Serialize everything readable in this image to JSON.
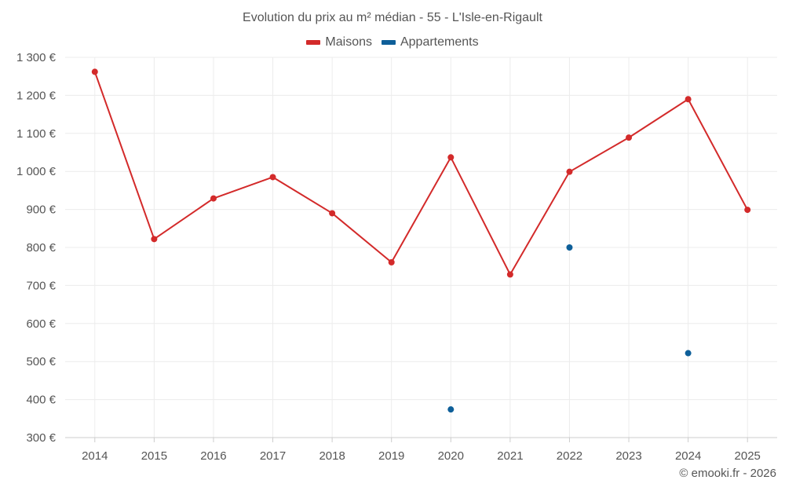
{
  "colors": {
    "maisons": "#d32a2a",
    "appartements": "#0e5f99",
    "grid": "#ececec",
    "axis": "#cccccc"
  },
  "credit": "© emooki.fr - 2026",
  "chart_data": {
    "type": "line",
    "title": "Evolution du prix au m² médian - 55 - L'Isle-en-Rigault",
    "xlabel": "",
    "ylabel": "",
    "ylim": [
      300,
      1300
    ],
    "yticks": [
      300,
      400,
      500,
      600,
      700,
      800,
      900,
      1000,
      1100,
      1200,
      1300
    ],
    "ytick_labels": [
      "300 €",
      "400 €",
      "500 €",
      "600 €",
      "700 €",
      "800 €",
      "900 €",
      "1 000 €",
      "1 100 €",
      "1 200 €",
      "1 300 €"
    ],
    "categories": [
      "2014",
      "2015",
      "2016",
      "2017",
      "2018",
      "2019",
      "2020",
      "2021",
      "2022",
      "2023",
      "2024",
      "2025"
    ],
    "legend_position": "top-center",
    "grid": true,
    "series": [
      {
        "name": "Maisons",
        "color_key": "maisons",
        "style": "line",
        "values": [
          1262,
          822,
          929,
          985,
          890,
          761,
          1037,
          729,
          999,
          1089,
          1190,
          899
        ]
      },
      {
        "name": "Appartements",
        "color_key": "appartements",
        "style": "points",
        "values": [
          null,
          null,
          null,
          null,
          null,
          null,
          374,
          null,
          800,
          null,
          522,
          null
        ]
      }
    ]
  }
}
